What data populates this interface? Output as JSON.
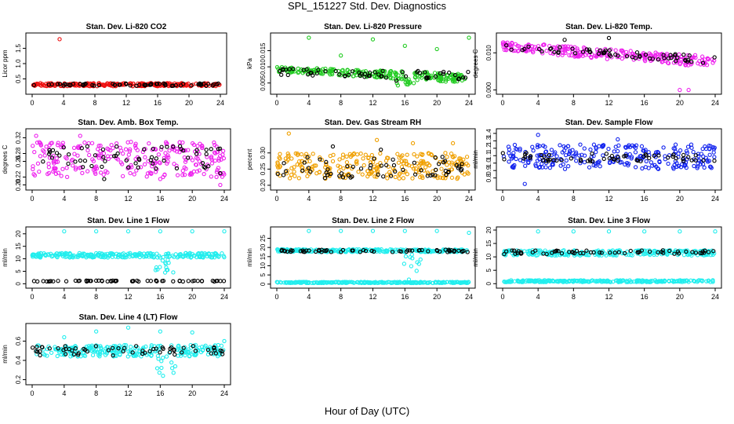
{
  "main_title": "SPL_151227  Std. Dev. Diagnostics",
  "x_caption": "Hour of Day (UTC)",
  "colors": {
    "black": "#000000",
    "red": "#ee1111",
    "green": "#22cc22",
    "magenta": "#ee22ee",
    "orange": "#f0a000",
    "blue": "#1122ee",
    "cyan": "#22eeee"
  },
  "chart_data": [
    {
      "type": "scatter",
      "title": "Stan. Dev. Li-820 CO2",
      "ylabel": "Licor ppm",
      "xlim": [
        0,
        24
      ],
      "ylim": [
        0.1,
        1.9
      ],
      "xticks": [
        "0",
        "4",
        "8",
        "12",
        "16",
        "20",
        "24"
      ],
      "yticks": [
        "0.5",
        "1.0",
        "1.5"
      ],
      "ytick_values": [
        0.5,
        1.0,
        1.5
      ],
      "series": [
        {
          "color": "red",
          "band": [
            0.26,
            0.36
          ],
          "outliers": [
            [
              3.5,
              1.8
            ]
          ]
        },
        {
          "color": "black",
          "band": [
            0.27,
            0.35
          ],
          "outliers": []
        }
      ]
    },
    {
      "type": "scatter",
      "title": "Stan. Dev. Li-820 Pressure",
      "ylabel": "kPa",
      "xlim": [
        0,
        24
      ],
      "ylim": [
        0.0025,
        0.0195
      ],
      "xticks": [
        "0",
        "4",
        "8",
        "12",
        "16",
        "20",
        "24"
      ],
      "yticks": [
        "0.005",
        "0.010",
        "0.015"
      ],
      "ytick_values": [
        0.005,
        0.01,
        0.015
      ],
      "series": [
        {
          "color": "green",
          "band_start": [
            0.0085,
            0.01
          ],
          "band_end": [
            0.005,
            0.008
          ],
          "dip": [
            16,
            0.004
          ],
          "outliers": [
            [
              4,
              0.019
            ],
            [
              8,
              0.0135
            ],
            [
              12,
              0.0185
            ],
            [
              16,
              0.0165
            ],
            [
              20,
              0.0155
            ],
            [
              24,
              0.019
            ]
          ]
        },
        {
          "color": "black",
          "band_start": [
            0.0075,
            0.0095
          ],
          "band_end": [
            0.006,
            0.0085
          ],
          "dip": [
            16,
            0.0055
          ],
          "outliers": []
        }
      ]
    },
    {
      "type": "scatter",
      "title": "Stan. Dev. Li-820 Temp.",
      "ylabel": "degrees C",
      "xlim": [
        0,
        24
      ],
      "ylim": [
        -0.0003,
        0.0145
      ],
      "xticks": [
        "0",
        "4",
        "8",
        "12",
        "16",
        "20",
        "24"
      ],
      "yticks": [
        "0.000",
        "0.010"
      ],
      "ytick_values": [
        0.0,
        0.01
      ],
      "series": [
        {
          "color": "magenta",
          "band_start": [
            0.0105,
            0.013
          ],
          "band_end": [
            0.006,
            0.009
          ],
          "outliers": [
            [
              20,
              0.0
            ],
            [
              21,
              0.0
            ]
          ]
        },
        {
          "color": "black",
          "band_start": [
            0.011,
            0.0125
          ],
          "band_end": [
            0.007,
            0.009
          ],
          "outliers": [
            [
              12,
              0.014
            ],
            [
              7,
              0.0135
            ]
          ]
        }
      ]
    },
    {
      "type": "scatter",
      "title": "Stan. Dev. Amb. Box Temp.",
      "ylabel": "degrees C",
      "xlim": [
        0,
        24
      ],
      "ylim": [
        0.195,
        0.335
      ],
      "xticks": [
        "0",
        "4",
        "8",
        "12",
        "16",
        "20",
        "24"
      ],
      "yticks": [
        "0.20",
        "0.22",
        "0.26",
        "0.28",
        "0.32"
      ],
      "ytick_values": [
        0.2,
        0.22,
        0.26,
        0.28,
        0.32
      ],
      "series": [
        {
          "color": "magenta",
          "band": [
            0.22,
            0.31
          ],
          "outliers": [
            [
              0.5,
              0.325
            ],
            [
              6,
              0.325
            ],
            [
              16,
              0.215
            ],
            [
              23.5,
              0.2
            ]
          ]
        },
        {
          "color": "black",
          "band": [
            0.24,
            0.3
          ],
          "outliers": [
            [
              9,
              0.215
            ],
            [
              23.5,
              0.23
            ]
          ]
        }
      ]
    },
    {
      "type": "scatter",
      "title": "Stan. Dev. Gas Stream RH",
      "ylabel": "percent",
      "xlim": [
        0,
        24
      ],
      "ylim": [
        0.195,
        0.365
      ],
      "xticks": [
        "0",
        "4",
        "8",
        "12",
        "16",
        "20",
        "24"
      ],
      "yticks": [
        "0.20",
        "0.25",
        "0.30"
      ],
      "ytick_values": [
        0.2,
        0.25,
        0.3
      ],
      "series": [
        {
          "color": "orange",
          "band": [
            0.22,
            0.3
          ],
          "outliers": [
            [
              1.5,
              0.36
            ],
            [
              12.5,
              0.34
            ],
            [
              17,
              0.33
            ],
            [
              22,
              0.33
            ]
          ]
        },
        {
          "color": "black",
          "band": [
            0.22,
            0.29
          ],
          "outliers": [
            [
              7,
              0.32
            ],
            [
              13,
              0.31
            ]
          ]
        }
      ]
    },
    {
      "type": "scatter",
      "title": "Stan. Dev. Sample Flow",
      "ylabel": "ml/min",
      "xlim": [
        0,
        24
      ],
      "ylim": [
        0.68,
        1.42
      ],
      "xticks": [
        "0",
        "4",
        "8",
        "12",
        "16",
        "20",
        "24"
      ],
      "yticks": [
        "0.8",
        "0.9",
        "1.0",
        "1.1",
        "1.2",
        "1.3",
        "1.4"
      ],
      "ytick_values": [
        0.8,
        0.9,
        1.0,
        1.1,
        1.2,
        1.3,
        1.4
      ],
      "series": [
        {
          "color": "blue",
          "band": [
            0.92,
            1.25
          ],
          "outliers": [
            [
              4,
              1.38
            ],
            [
              2.5,
              0.72
            ],
            [
              13,
              1.32
            ],
            [
              23.5,
              0.95
            ]
          ]
        },
        {
          "color": "black",
          "band": [
            1.02,
            1.14
          ],
          "outliers": []
        }
      ]
    },
    {
      "type": "scatter",
      "title": "Stan. Dev. Line 1 Flow",
      "ylabel": "ml/min",
      "xlim": [
        0,
        24
      ],
      "ylim": [
        -0.5,
        21.5
      ],
      "xticks": [
        "0",
        "4",
        "8",
        "12",
        "16",
        "20",
        "24"
      ],
      "yticks": [
        "0",
        "5",
        "10",
        "15",
        "20"
      ],
      "ytick_values": [
        0,
        5,
        10,
        15,
        20
      ],
      "series": [
        {
          "color": "cyan",
          "band": [
            10.5,
            12.3
          ],
          "dip": [
            16.5,
            4
          ],
          "outliers": [
            [
              4,
              21
            ],
            [
              8,
              21
            ],
            [
              12,
              21
            ],
            [
              16,
              21
            ],
            [
              20,
              21
            ],
            [
              24,
              21
            ]
          ]
        },
        {
          "color": "black",
          "band": [
            0.9,
            1.3
          ],
          "outliers": []
        }
      ]
    },
    {
      "type": "scatter",
      "title": "Stan. Dev. Line 2 Flow",
      "ylabel": "ml/min",
      "xlim": [
        0,
        24
      ],
      "ylim": [
        -0.5,
        29.5
      ],
      "xticks": [
        "0",
        "4",
        "8",
        "12",
        "16",
        "20",
        "24"
      ],
      "yticks": [
        "0",
        "5",
        "10",
        "15",
        "20",
        "25"
      ],
      "ytick_values": [
        0,
        5,
        10,
        15,
        20,
        25
      ],
      "series": [
        {
          "color": "cyan",
          "band": [
            17.5,
            19
          ],
          "dip": [
            17,
            7
          ],
          "outliers": [
            [
              4,
              29
            ],
            [
              8,
              29
            ],
            [
              12,
              29
            ],
            [
              16,
              29
            ],
            [
              20,
              29
            ],
            [
              24,
              28
            ]
          ]
        },
        {
          "color": "black",
          "band": [
            17.5,
            18.8
          ],
          "outliers": []
        },
        {
          "color": "cyan",
          "band": [
            0.6,
            1.2
          ],
          "outliers": [
            [
              16.5,
              2.5
            ]
          ]
        }
      ]
    },
    {
      "type": "scatter",
      "title": "Stan. Dev. Line 3 Flow",
      "ylabel": "ml/min",
      "xlim": [
        0,
        24
      ],
      "ylim": [
        -0.5,
        20
      ],
      "xticks": [
        "0",
        "4",
        "8",
        "12",
        "16",
        "20",
        "24"
      ],
      "yticks": [
        "0",
        "5",
        "10",
        "15",
        "20"
      ],
      "ytick_values": [
        0,
        5,
        10,
        15,
        20
      ],
      "series": [
        {
          "color": "cyan",
          "band": [
            10.5,
            12.5
          ],
          "outliers": [
            [
              4,
              19.5
            ],
            [
              8,
              19.5
            ],
            [
              12,
              19.5
            ],
            [
              16,
              19.5
            ],
            [
              20,
              19.5
            ],
            [
              24,
              19.5
            ]
          ]
        },
        {
          "color": "black",
          "band": [
            11,
            12.5
          ],
          "outliers": []
        },
        {
          "color": "cyan",
          "band": [
            0.6,
            1.3
          ],
          "outliers": []
        }
      ]
    },
    {
      "type": "scatter",
      "title": "Stan. Dev. Line 4 (LT) Flow",
      "ylabel": "ml/min",
      "xlim": [
        0,
        24
      ],
      "ylim": [
        0.18,
        0.75
      ],
      "xticks": [
        "0",
        "4",
        "8",
        "12",
        "16",
        "20",
        "24"
      ],
      "yticks": [
        "0.2",
        "0.4",
        "0.6"
      ],
      "ytick_values": [
        0.2,
        0.4,
        0.6
      ],
      "series": [
        {
          "color": "cyan",
          "band": [
            0.44,
            0.56
          ],
          "dip": [
            16.8,
            0.22
          ],
          "outliers": [
            [
              4,
              0.64
            ],
            [
              8,
              0.7
            ],
            [
              12,
              0.74
            ],
            [
              16,
              0.7
            ],
            [
              20,
              0.69
            ],
            [
              24,
              0.6
            ]
          ]
        },
        {
          "color": "black",
          "band": [
            0.45,
            0.55
          ],
          "outliers": []
        }
      ]
    }
  ]
}
